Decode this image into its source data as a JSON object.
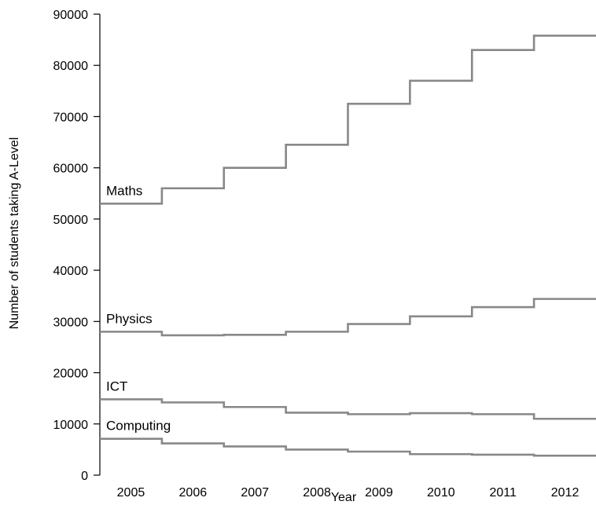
{
  "chart_data": {
    "type": "line",
    "step": "mid",
    "title": "",
    "xlabel": "Year",
    "ylabel": "Number of students taking A-Level",
    "categories": [
      "2005",
      "2006",
      "2007",
      "2008",
      "2009",
      "2010",
      "2011",
      "2012"
    ],
    "ylim": [
      0,
      90000
    ],
    "yticks": [
      0,
      10000,
      20000,
      30000,
      40000,
      50000,
      60000,
      70000,
      80000,
      90000
    ],
    "grid": false,
    "legend": "none",
    "line_color": "#888888",
    "series": [
      {
        "name": "Maths",
        "values": [
          53000,
          56000,
          60000,
          64500,
          72500,
          77000,
          83000,
          85800
        ]
      },
      {
        "name": "Physics",
        "values": [
          28000,
          27300,
          27400,
          28000,
          29500,
          31000,
          32800,
          34400
        ]
      },
      {
        "name": "ICT",
        "values": [
          14800,
          14200,
          13300,
          12200,
          11900,
          12100,
          11900,
          11000
        ]
      },
      {
        "name": "Computing",
        "values": [
          7100,
          6200,
          5600,
          5000,
          4600,
          4100,
          4000,
          3800
        ]
      }
    ]
  }
}
